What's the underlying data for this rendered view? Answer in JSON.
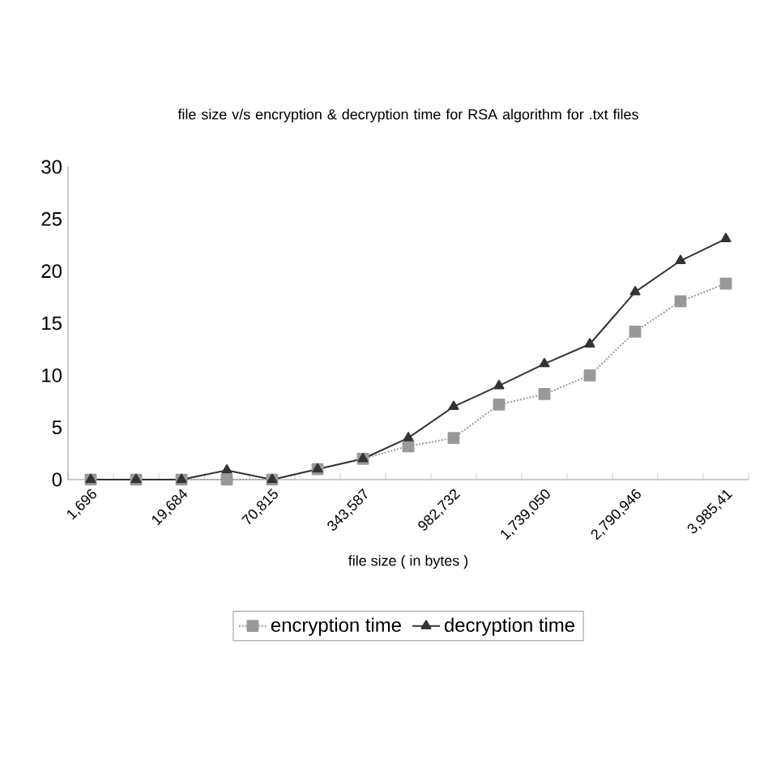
{
  "chart_data": {
    "type": "line",
    "title": "file size v/s encryption & decryption time for RSA algorithm for .txt files",
    "xlabel": "file size ( in bytes )",
    "categories": [
      "1,696",
      null,
      "19,684",
      null,
      "70,815",
      null,
      "343,587",
      null,
      "982,732",
      null,
      "1,739,050",
      null,
      "2,790,946",
      null,
      "3,985,41"
    ],
    "series": [
      {
        "name": "encryption time",
        "color": "#999999",
        "marker": "square",
        "line_style": "dotted",
        "values": [
          0,
          0,
          0,
          0,
          0,
          1,
          2,
          3.2,
          4,
          7.2,
          8.2,
          10,
          14.2,
          17.1,
          18.8
        ]
      },
      {
        "name": "decryption time",
        "color": "#333333",
        "marker": "triangle",
        "line_style": "solid",
        "values": [
          0,
          0,
          0,
          0.9,
          0,
          1,
          2,
          4,
          7,
          9,
          11.1,
          13,
          18,
          21,
          23.1
        ]
      }
    ],
    "ylim": [
      0,
      30
    ],
    "yticks": [
      0,
      5,
      10,
      15,
      20,
      25,
      30
    ],
    "grid": false,
    "legend": "bottom"
  }
}
